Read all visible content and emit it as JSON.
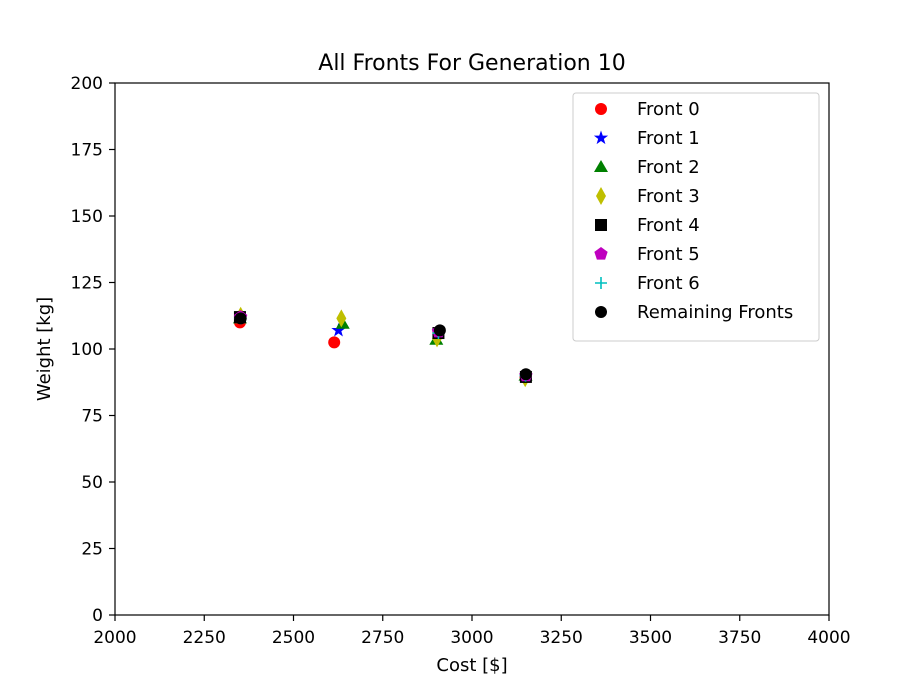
{
  "chart_data": {
    "type": "scatter",
    "title": "All Fronts For Generation 10",
    "xlabel": "Cost [$]",
    "ylabel": "Weight [kg]",
    "xlim": [
      2000,
      4000
    ],
    "ylim": [
      0,
      200
    ],
    "xticks": [
      2000,
      2250,
      2500,
      2750,
      3000,
      3250,
      3500,
      3750,
      4000
    ],
    "yticks": [
      0,
      25,
      50,
      75,
      100,
      125,
      150,
      175,
      200
    ],
    "grid": false,
    "legend_position": "top-right",
    "series": [
      {
        "name": "Front 0",
        "marker": "circle",
        "color": "#ff0000",
        "points": [
          [
            2350,
            110
          ],
          [
            2614,
            102.5
          ],
          [
            2906,
            106
          ],
          [
            3150,
            89.5
          ]
        ]
      },
      {
        "name": "Front 1",
        "marker": "star",
        "color": "#0000ff",
        "points": [
          [
            2626,
            107
          ]
        ]
      },
      {
        "name": "Front 2",
        "marker": "triangle",
        "color": "#008000",
        "points": [
          [
            2350,
            111.5
          ],
          [
            2638,
            109.5
          ],
          [
            2900,
            103.5
          ],
          [
            3150,
            90
          ]
        ]
      },
      {
        "name": "Front 3",
        "marker": "diamond",
        "color": "#bfbf00",
        "points": [
          [
            2352,
            112.5
          ],
          [
            2634,
            111.5
          ],
          [
            2902,
            104
          ],
          [
            3149,
            89
          ]
        ]
      },
      {
        "name": "Front 4",
        "marker": "square",
        "color": "#000000",
        "points": [
          [
            2350,
            112
          ],
          [
            2906,
            106
          ],
          [
            3151,
            89.5
          ]
        ]
      },
      {
        "name": "Front 5",
        "marker": "pentagon",
        "color": "#bf00bf",
        "points": [
          [
            2352,
            112
          ],
          [
            2906,
            106.5
          ],
          [
            3151,
            90
          ]
        ]
      },
      {
        "name": "Front 6",
        "marker": "plus",
        "color": "#00bfbf",
        "points": [
          [
            2352,
            111.5
          ],
          [
            2906,
            106
          ],
          [
            3150,
            90
          ]
        ]
      },
      {
        "name": "Remaining Fronts",
        "marker": "circle",
        "color": "#000000",
        "points": [
          [
            2352,
            111.5
          ],
          [
            2910,
            107
          ],
          [
            3151,
            90.5
          ]
        ]
      }
    ]
  }
}
